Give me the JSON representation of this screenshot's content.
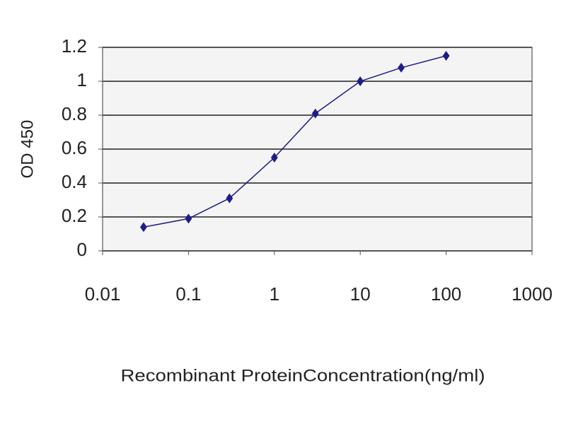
{
  "chart_data": {
    "type": "line",
    "x_label": "Recombinant ProteinConcentration(ng/ml)",
    "y_label": "OD 450",
    "x_scale": "log",
    "x": [
      0.03,
      0.1,
      0.3,
      1,
      3,
      10,
      30,
      100
    ],
    "series": [
      {
        "color": "#1c1c8a",
        "values": [
          0.14,
          0.19,
          0.31,
          0.55,
          0.81,
          1.0,
          1.08,
          1.15
        ]
      }
    ],
    "xlim": [
      0.01,
      1000
    ],
    "xticks": [
      0.01,
      0.1,
      1,
      10,
      100,
      1000
    ],
    "ylim": [
      0,
      1.2
    ],
    "yticks": [
      0,
      0.2,
      0.4,
      0.6,
      0.8,
      1,
      1.2
    ],
    "grid": true
  }
}
